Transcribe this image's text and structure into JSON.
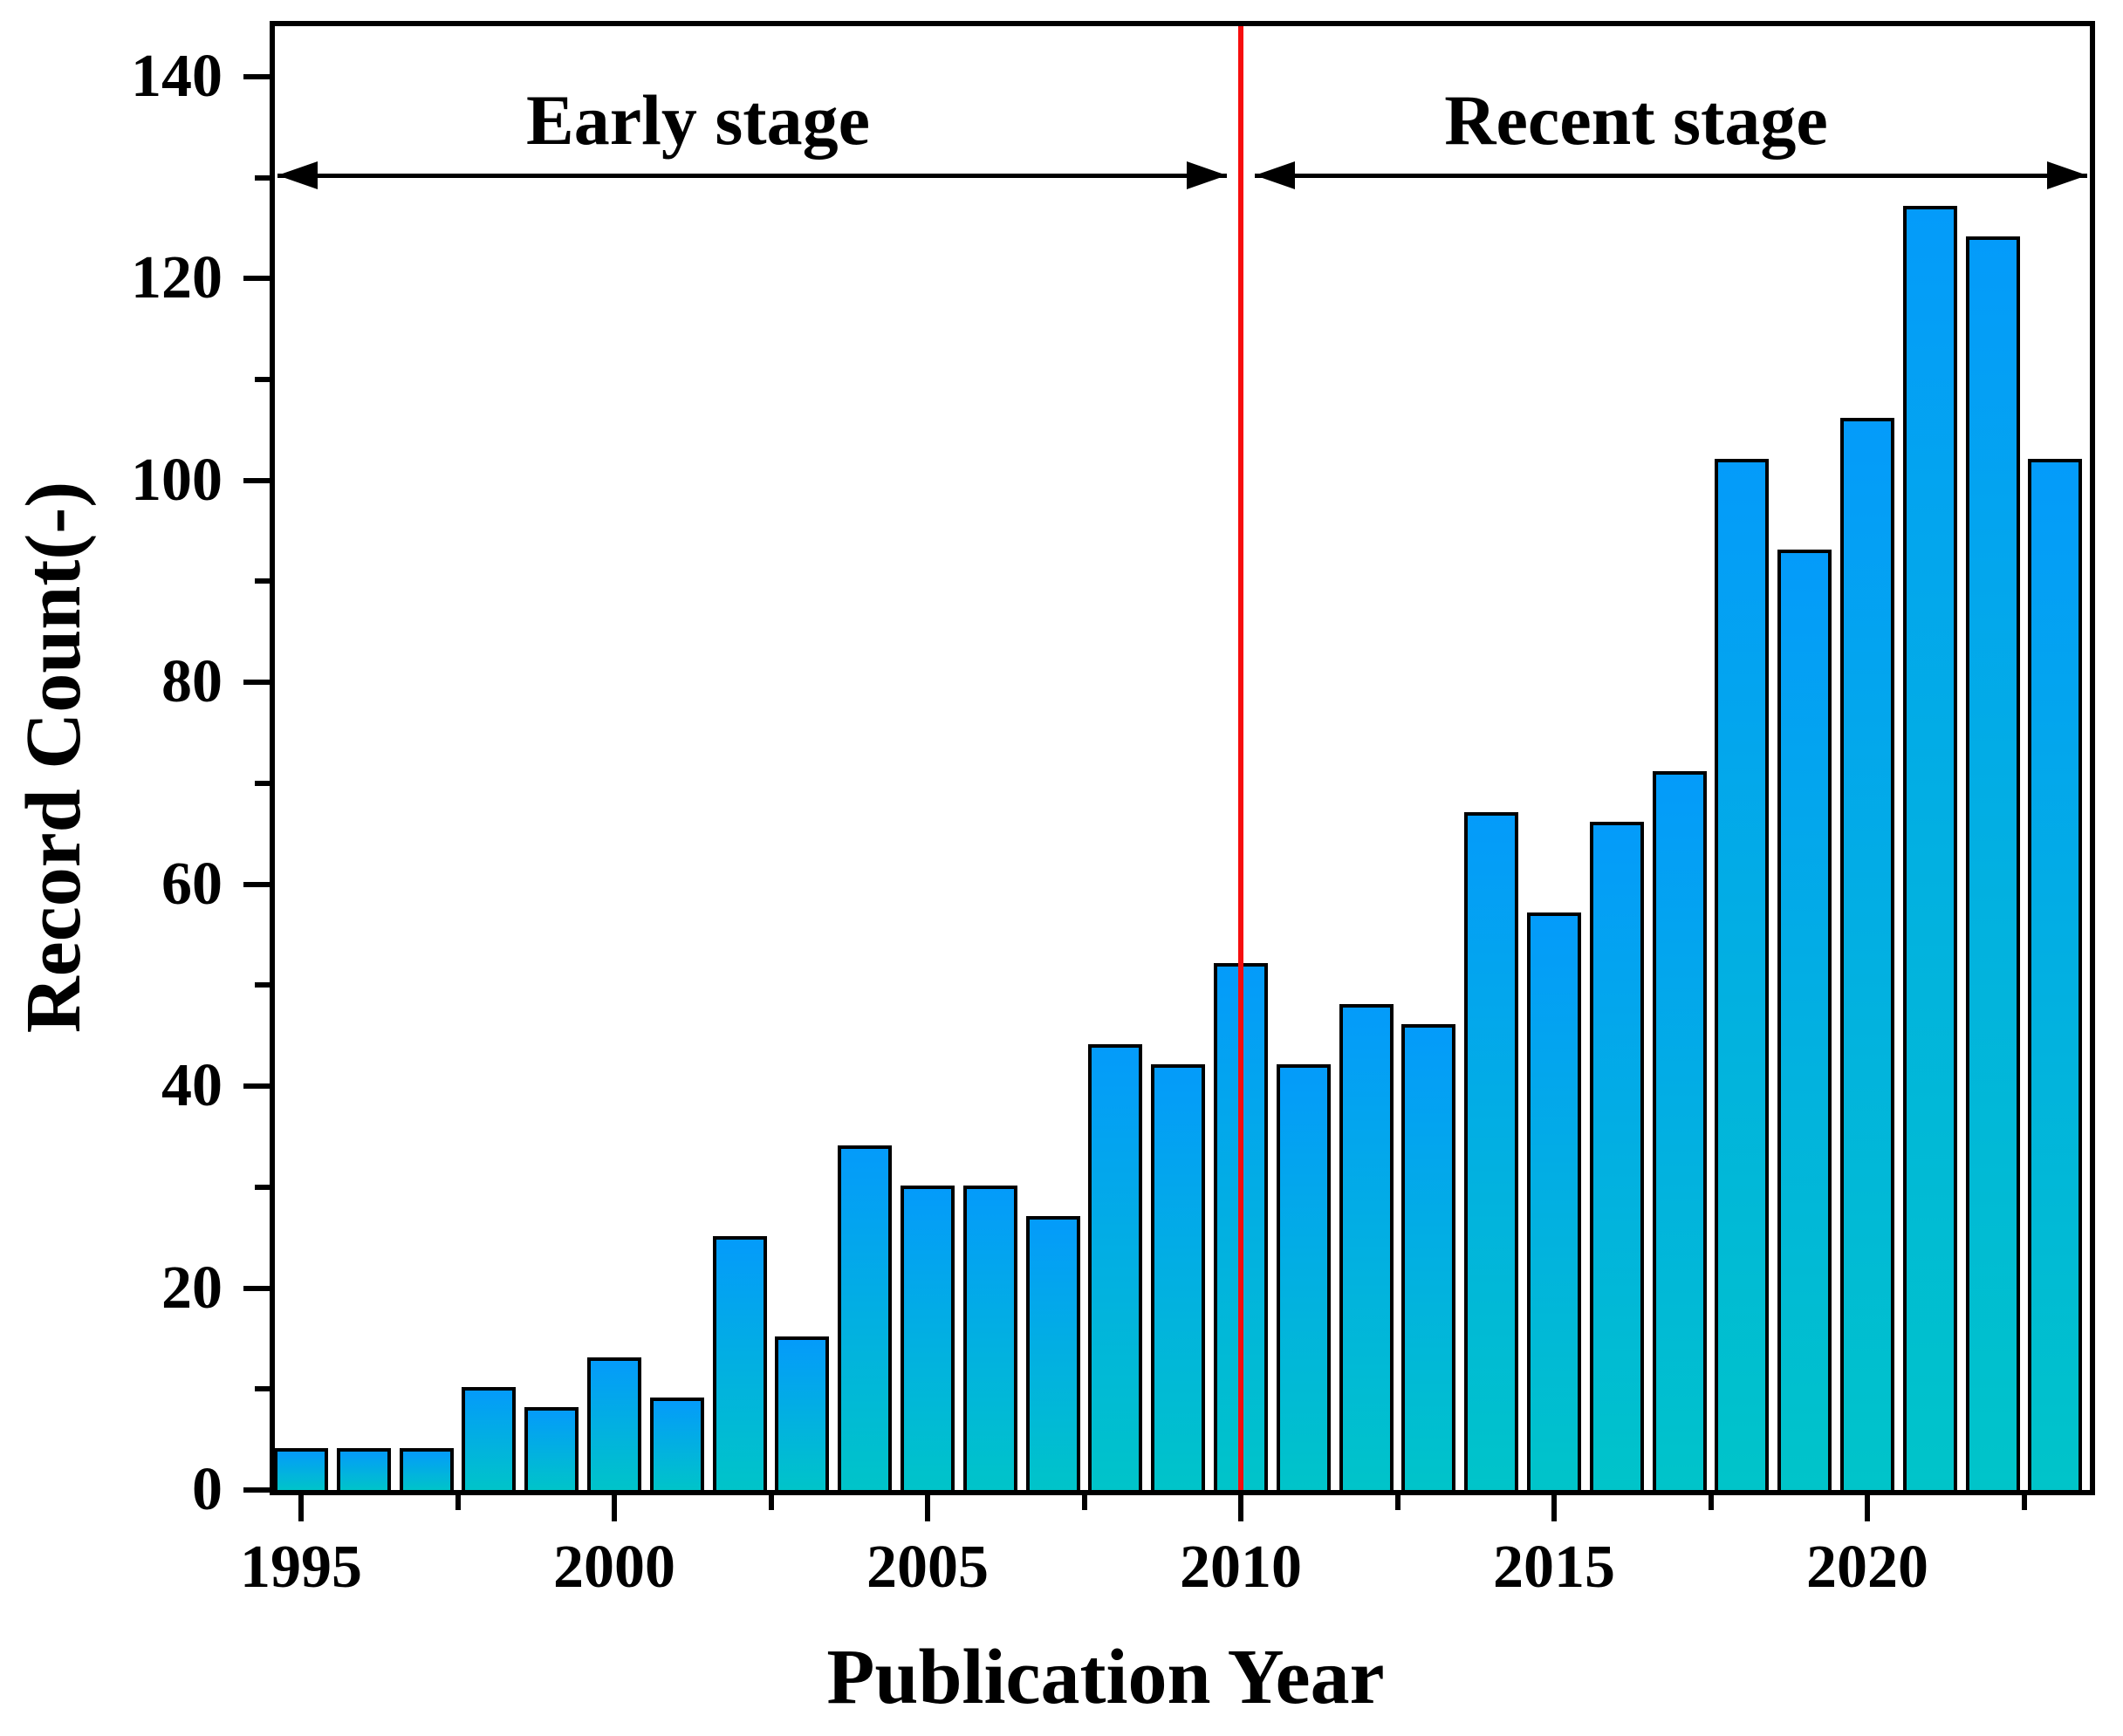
{
  "chart_data": {
    "type": "bar",
    "title": "",
    "xlabel": "Publication Year",
    "ylabel": "Record Count(-)",
    "categories": [
      1995,
      1996,
      1997,
      1998,
      1999,
      2000,
      2001,
      2002,
      2003,
      2004,
      2005,
      2006,
      2007,
      2008,
      2009,
      2010,
      2011,
      2012,
      2013,
      2014,
      2015,
      2016,
      2017,
      2018,
      2019,
      2020,
      2021,
      2022,
      2023
    ],
    "values": [
      4,
      4,
      4,
      10,
      8,
      13,
      9,
      25,
      15,
      34,
      30,
      30,
      27,
      44,
      42,
      52,
      42,
      48,
      46,
      67,
      57,
      66,
      71,
      102,
      93,
      106,
      127,
      124,
      102
    ],
    "ylim": [
      0,
      145
    ],
    "yticks_major": [
      0,
      20,
      40,
      60,
      80,
      100,
      120,
      140
    ],
    "yticks_minor": [
      10,
      30,
      50,
      70,
      90,
      110,
      130
    ],
    "xticks_major": [
      1995,
      2000,
      2005,
      2010,
      2015,
      2020
    ],
    "xticks_minor": [
      1997.5,
      2002.5,
      2007.5,
      2012.5,
      2017.5,
      2022.5
    ],
    "grid": false,
    "legend": "none",
    "bar_fill_top": "#049bfa",
    "bar_fill_bottom": "#00c4c9",
    "bar_border": "#000000",
    "annotations": {
      "early_stage": {
        "text": "Early stage",
        "span_years": [
          1995,
          2010
        ]
      },
      "recent_stage": {
        "text": "Recent stage",
        "span_years": [
          2010,
          2023
        ]
      },
      "divider": {
        "year": 2010,
        "color": "#f60d0d"
      }
    }
  }
}
